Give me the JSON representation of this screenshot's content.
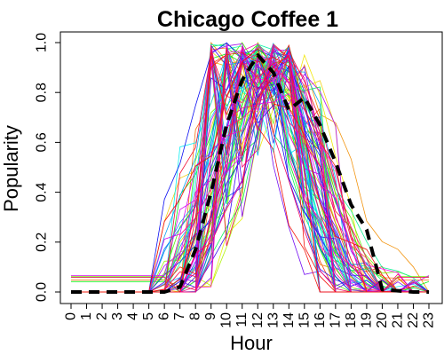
{
  "chart_data": {
    "type": "line",
    "title": "Chicago Coffee 1",
    "xlabel": "Hour",
    "ylabel": "Popularity",
    "x": [
      0,
      1,
      2,
      3,
      4,
      5,
      6,
      7,
      8,
      9,
      10,
      11,
      12,
      13,
      14,
      15,
      16,
      17,
      18,
      19,
      20,
      21,
      22,
      23
    ],
    "xtick_labels": [
      "0",
      "1",
      "2",
      "3",
      "4",
      "5",
      "6",
      "7",
      "8",
      "9",
      "10",
      "11",
      "12",
      "13",
      "14",
      "15",
      "16",
      "17",
      "18",
      "19",
      "20",
      "21",
      "22",
      "23"
    ],
    "xlim": [
      0,
      23
    ],
    "ylim": [
      0,
      1
    ],
    "yticks": [
      0,
      0.2,
      0.4,
      0.6,
      0.8,
      1
    ],
    "ytick_labels": [
      "0.0",
      "0.2",
      "0.4",
      "0.6",
      "0.8",
      "1.0"
    ],
    "grid": false,
    "legend": "none",
    "background_series_note": "many thin multicolored lines, one per location",
    "background_series_count": 90,
    "summary_series": {
      "style": "dashed-black-thick",
      "values": [
        0,
        0,
        0,
        0,
        0,
        0,
        0,
        0.02,
        0.17,
        0.4,
        0.67,
        0.85,
        0.95,
        0.88,
        0.73,
        0.78,
        0.67,
        0.52,
        0.35,
        0.25,
        0.01,
        0.005,
        0,
        0
      ]
    },
    "colors": {
      "summary": "#000000",
      "axis": "#000000",
      "background": "#ffffff"
    }
  }
}
